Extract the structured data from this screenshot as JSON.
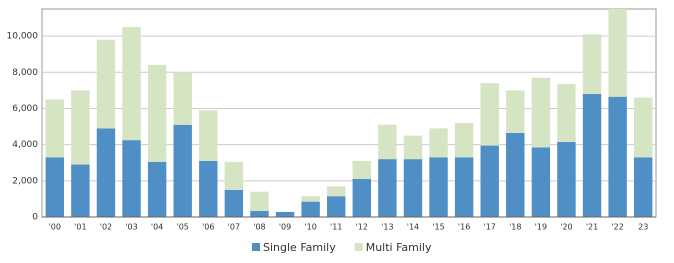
{
  "chart_data": {
    "type": "stacked_bar",
    "categories": [
      "'00",
      "'01",
      "'02",
      "'03",
      "'04",
      "'05",
      "'06",
      "'07",
      "'08",
      "'09",
      "'10",
      "'11",
      "'12",
      "'13",
      "'14",
      "'15",
      "'16",
      "'17",
      "'18",
      "'19",
      "'20",
      "'21",
      "'22",
      "23"
    ],
    "series": [
      {
        "name": "Single Family",
        "color": "#4f8fc6",
        "values": [
          3300,
          2900,
          4900,
          4250,
          3050,
          5100,
          3100,
          1500,
          330,
          280,
          850,
          1150,
          2100,
          3200,
          3200,
          3300,
          3300,
          3950,
          4650,
          3850,
          4150,
          6800,
          6650,
          3300
        ]
      },
      {
        "name": "Multi Family",
        "color": "#d5e4c3",
        "values": [
          3200,
          4100,
          4900,
          6250,
          5350,
          2900,
          2800,
          1550,
          1070,
          0,
          300,
          550,
          1000,
          1900,
          1300,
          1600,
          1900,
          3450,
          2350,
          3850,
          3200,
          3300,
          4850,
          3300
        ]
      }
    ],
    "ylim": [
      0,
      11500
    ],
    "yticks": [
      0,
      {
        "value": 2000,
        "label": "2,000"
      },
      {
        "value": 4000,
        "label": "4,000"
      },
      {
        "value": 6000,
        "label": "6,000"
      },
      {
        "value": 8000,
        "label": "8,000"
      },
      {
        "value": 10000,
        "label": "10,000"
      }
    ],
    "grid": true,
    "legend": "bottom"
  }
}
